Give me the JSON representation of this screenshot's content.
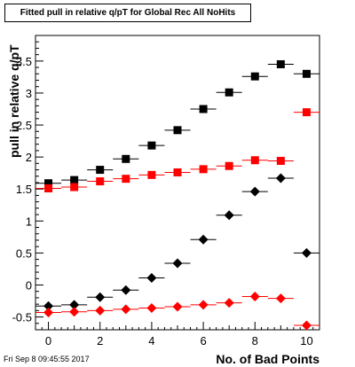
{
  "chart_data": {
    "type": "scatter",
    "title": "Fitted pull in relative q/pT for Global Rec All NoHits",
    "xlabel": "No. of Bad Points",
    "ylabel": "pull in relative q/pT",
    "xlim": [
      -0.5,
      10.5
    ],
    "ylim": [
      -0.7,
      3.9
    ],
    "x_ticks": [
      0,
      2,
      4,
      6,
      8,
      10
    ],
    "y_ticks": [
      -0.5,
      0,
      0.5,
      1,
      1.5,
      2,
      2.5,
      3,
      3.5
    ],
    "x_tick_labels": [
      "0",
      "2",
      "4",
      "6",
      "8",
      "10"
    ],
    "y_tick_labels": [
      "-0.5",
      "0",
      "0.5",
      "1",
      "1.5",
      "2",
      "2.5",
      "3",
      "3.5"
    ],
    "grid": false,
    "legend": "none",
    "series": [
      {
        "marker": "square",
        "color": "#000000",
        "x": [
          0,
          1,
          2,
          3,
          4,
          5,
          6,
          7,
          8,
          9,
          10
        ],
        "y": [
          1.59,
          1.64,
          1.8,
          1.97,
          2.18,
          2.42,
          2.75,
          3.01,
          3.26,
          3.45,
          3.3
        ]
      },
      {
        "marker": "square",
        "color": "#ff0000",
        "x": [
          0,
          1,
          2,
          3,
          4,
          5,
          6,
          7,
          8,
          9,
          10
        ],
        "y": [
          1.51,
          1.53,
          1.62,
          1.66,
          1.72,
          1.76,
          1.81,
          1.86,
          1.95,
          1.94,
          2.7
        ]
      },
      {
        "marker": "diamond",
        "color": "#000000",
        "x": [
          0,
          1,
          2,
          3,
          4,
          5,
          6,
          7,
          8,
          9,
          10
        ],
        "y": [
          -0.33,
          -0.31,
          -0.19,
          -0.08,
          0.11,
          0.34,
          0.71,
          1.09,
          1.46,
          1.67,
          0.5
        ]
      },
      {
        "marker": "diamond",
        "color": "#ff0000",
        "x": [
          0,
          1,
          2,
          3,
          4,
          5,
          6,
          7,
          8,
          9,
          10
        ],
        "y": [
          -0.43,
          -0.42,
          -0.4,
          -0.38,
          -0.36,
          -0.34,
          -0.31,
          -0.28,
          -0.18,
          -0.21,
          -0.63
        ]
      }
    ]
  },
  "footer": {
    "timestamp": "Fri Sep  8 09:45:55 2017"
  }
}
